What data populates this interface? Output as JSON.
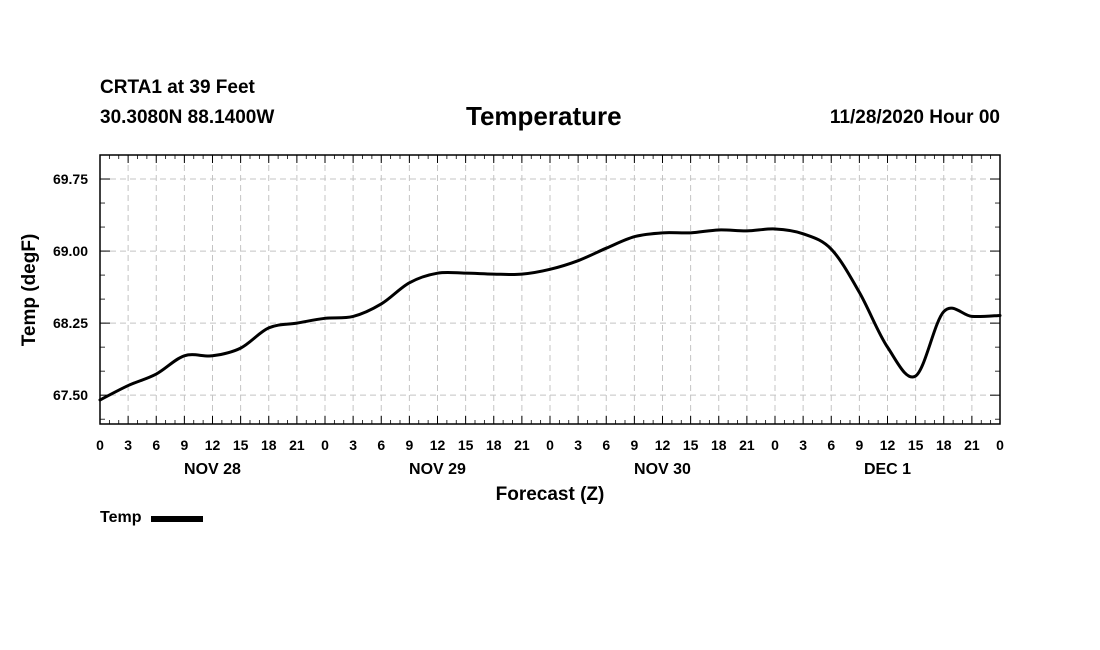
{
  "header": {
    "station": "CRTA1 at 39 Feet",
    "coords": "30.3080N 88.1400W",
    "title": "Temperature",
    "run_time": "11/28/2020 Hour 00"
  },
  "chart_data": {
    "type": "line",
    "title": "Temperature",
    "xlabel": "Forecast (Z)",
    "ylabel": "Temp (degF)",
    "xlim": [
      0,
      96
    ],
    "ylim": [
      67.2,
      70.0
    ],
    "grid": true,
    "y_ticks": [
      67.5,
      68.25,
      69.0,
      69.75
    ],
    "y_tick_labels": [
      "67.50",
      "68.25",
      "69.00",
      "69.75"
    ],
    "x_tick_hours": [
      0,
      3,
      6,
      9,
      12,
      15,
      18,
      21,
      24,
      27,
      30,
      33,
      36,
      39,
      42,
      45,
      48,
      51,
      54,
      57,
      60,
      63,
      66,
      69,
      72,
      75,
      78,
      81,
      84,
      87,
      90,
      93,
      96
    ],
    "x_tick_labels": [
      "0",
      "3",
      "6",
      "9",
      "12",
      "15",
      "18",
      "21",
      "0",
      "3",
      "6",
      "9",
      "12",
      "15",
      "18",
      "21",
      "0",
      "3",
      "6",
      "9",
      "12",
      "15",
      "18",
      "21",
      "0",
      "3",
      "6",
      "9",
      "12",
      "15",
      "18",
      "21",
      "0"
    ],
    "day_labels": [
      {
        "hour": 12,
        "label": "NOV 28"
      },
      {
        "hour": 36,
        "label": "NOV 29"
      },
      {
        "hour": 60,
        "label": "NOV 30"
      },
      {
        "hour": 84,
        "label": "DEC 1"
      }
    ],
    "series": [
      {
        "name": "Temp",
        "color": "#000000",
        "x": [
          0,
          3,
          6,
          9,
          12,
          15,
          18,
          21,
          24,
          27,
          30,
          33,
          36,
          39,
          42,
          45,
          48,
          51,
          54,
          57,
          60,
          63,
          66,
          69,
          72,
          75,
          78,
          81,
          84,
          87,
          90,
          93,
          96
        ],
        "values": [
          67.45,
          67.6,
          67.72,
          67.91,
          67.91,
          67.99,
          68.2,
          68.25,
          68.3,
          68.32,
          68.45,
          68.67,
          68.77,
          68.77,
          68.76,
          68.76,
          68.81,
          68.9,
          69.03,
          69.15,
          69.19,
          69.19,
          69.22,
          69.21,
          69.23,
          69.18,
          69.02,
          68.57,
          68.0,
          67.7,
          68.37,
          68.32,
          68.33
        ]
      }
    ]
  },
  "legend": {
    "label": "Temp"
  }
}
